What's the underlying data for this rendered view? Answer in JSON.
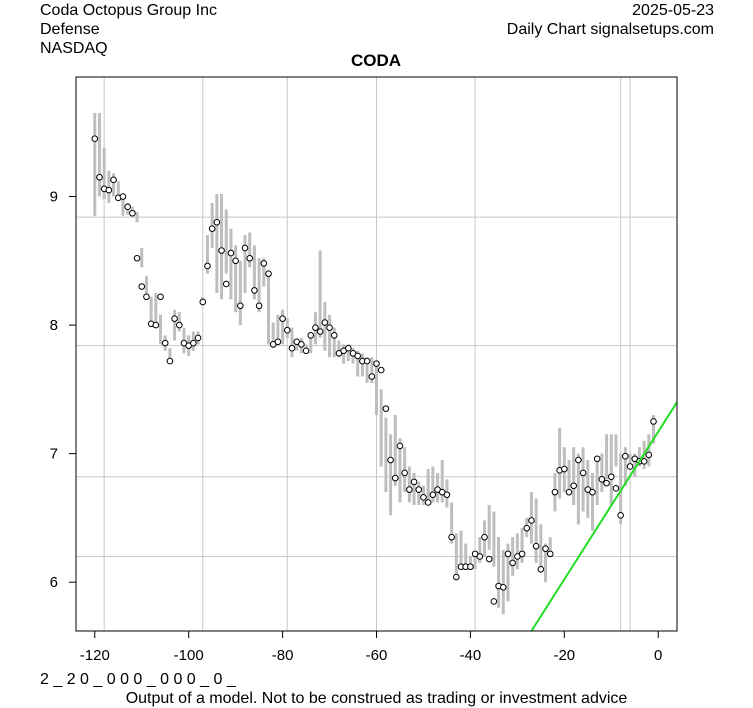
{
  "header": {
    "company": "Coda Octopus Group Inc",
    "sector": "Defense",
    "exchange": "NASDAQ",
    "date": "2025-05-23",
    "source": "Daily Chart signalsetups.com"
  },
  "footer": {
    "code": "2 _ 2 0 _ 0 0 0 _ 0 0 0 _ 0 _",
    "disclaimer": "Output of a model. Not to be construed as trading or investment advice"
  },
  "chart_data": {
    "type": "line",
    "title": "CODA",
    "xlabel": "",
    "ylabel": "",
    "xlim": [
      -124,
      4
    ],
    "ylim": [
      5.62,
      9.93
    ],
    "x_ticks": [
      -120,
      -100,
      -80,
      -60,
      -40,
      -20,
      0
    ],
    "y_ticks": [
      6,
      7,
      8,
      9
    ],
    "vertical_gridlines": [
      -118,
      -97,
      -79,
      -60,
      -39,
      -8,
      -6
    ],
    "horizontal_gridlines": [
      6.2,
      6.82,
      7.84,
      8.84
    ],
    "series": [
      {
        "name": "daily range",
        "style": "range-bars",
        "color": "#bebebe",
        "x": [
          -120,
          -119,
          -118,
          -117,
          -116,
          -115,
          -114,
          -113,
          -112,
          -111,
          -110,
          -109,
          -108,
          -107,
          -106,
          -105,
          -104,
          -103,
          -102,
          -101,
          -100,
          -99,
          -98,
          -97,
          -96,
          -95,
          -94,
          -93,
          -92,
          -91,
          -90,
          -89,
          -88,
          -87,
          -86,
          -85,
          -84,
          -83,
          -82,
          -81,
          -80,
          -79,
          -78,
          -77,
          -76,
          -75,
          -74,
          -73,
          -72,
          -71,
          -70,
          -69,
          -68,
          -67,
          -66,
          -65,
          -64,
          -63,
          -62,
          -61,
          -60,
          -59,
          -58,
          -57,
          -56,
          -55,
          -54,
          -53,
          -52,
          -51,
          -50,
          -49,
          -48,
          -47,
          -46,
          -45,
          -44,
          -43,
          -42,
          -41,
          -40,
          -39,
          -38,
          -37,
          -36,
          -35,
          -34,
          -33,
          -32,
          -31,
          -30,
          -29,
          -28,
          -27,
          -26,
          -25,
          -24,
          -23,
          -22,
          -21,
          -20,
          -19,
          -18,
          -17,
          -16,
          -15,
          -14,
          -13,
          -12,
          -11,
          -10,
          -9,
          -8,
          -7,
          -6,
          -5,
          -4,
          -3,
          -2,
          -1
        ],
        "low": [
          8.85,
          9.0,
          8.98,
          8.95,
          9.0,
          8.97,
          8.85,
          8.86,
          8.85,
          8.8,
          8.45,
          8.2,
          8.0,
          7.98,
          7.85,
          7.8,
          7.72,
          7.88,
          7.95,
          7.78,
          7.76,
          7.8,
          7.85,
          8.15,
          8.4,
          8.6,
          8.25,
          8.2,
          8.4,
          8.2,
          8.1,
          8.0,
          8.25,
          8.45,
          8.2,
          8.1,
          8.3,
          7.85,
          7.82,
          7.85,
          7.85,
          7.9,
          7.75,
          7.8,
          7.78,
          7.78,
          7.78,
          7.85,
          7.9,
          7.8,
          7.75,
          7.75,
          7.75,
          7.7,
          7.72,
          7.7,
          7.6,
          7.6,
          7.55,
          7.55,
          7.3,
          6.9,
          6.7,
          6.52,
          6.75,
          6.62,
          6.7,
          6.62,
          6.6,
          6.6,
          6.6,
          6.6,
          6.62,
          6.62,
          6.62,
          6.58,
          6.3,
          6.03,
          6.1,
          6.1,
          6.1,
          6.1,
          6.15,
          6.2,
          6.25,
          6.12,
          5.8,
          5.75,
          5.85,
          6.05,
          6.1,
          6.15,
          6.35,
          6.3,
          6.15,
          6.1,
          6.0,
          6.2,
          6.55,
          6.65,
          6.7,
          6.7,
          6.6,
          6.45,
          6.55,
          6.5,
          6.4,
          6.6,
          6.7,
          6.8,
          6.6,
          6.9,
          6.45,
          6.75,
          6.88,
          6.82,
          6.9,
          6.88,
          6.9,
          7.08
        ],
        "high": [
          9.65,
          9.65,
          9.38,
          9.2,
          9.18,
          9.12,
          9.02,
          8.95,
          8.92,
          8.88,
          8.6,
          8.38,
          8.22,
          8.25,
          8.08,
          7.92,
          7.82,
          8.12,
          8.1,
          7.98,
          7.92,
          7.95,
          7.95,
          8.22,
          8.7,
          8.95,
          9.02,
          9.02,
          8.9,
          8.75,
          8.62,
          8.5,
          8.7,
          8.72,
          8.62,
          8.52,
          8.52,
          8.42,
          8.02,
          8.08,
          8.12,
          8.05,
          7.98,
          7.88,
          7.9,
          7.85,
          7.92,
          8.1,
          8.58,
          8.18,
          8.08,
          7.98,
          7.88,
          7.85,
          7.85,
          7.82,
          7.8,
          7.78,
          7.75,
          7.75,
          7.7,
          7.5,
          7.28,
          7.15,
          7.3,
          7.12,
          7.05,
          6.9,
          6.85,
          6.78,
          6.75,
          6.88,
          6.9,
          6.85,
          6.95,
          6.8,
          6.62,
          6.38,
          6.4,
          6.3,
          6.2,
          6.2,
          6.35,
          6.48,
          6.6,
          6.55,
          6.35,
          6.25,
          6.3,
          6.35,
          6.38,
          6.42,
          6.5,
          6.7,
          6.65,
          6.45,
          6.3,
          6.35,
          6.85,
          7.2,
          7.05,
          6.95,
          7.05,
          7.0,
          7.05,
          6.95,
          6.85,
          6.95,
          7.0,
          7.15,
          7.15,
          7.15,
          7.0,
          7.05,
          7.0,
          7.0,
          7.05,
          7.1,
          7.15,
          7.3
        ]
      },
      {
        "name": "close",
        "style": "markers",
        "color": "#000000",
        "x": [
          -120,
          -119,
          -118,
          -117,
          -116,
          -115,
          -114,
          -113,
          -112,
          -111,
          -110,
          -109,
          -108,
          -107,
          -106,
          -105,
          -104,
          -103,
          -102,
          -101,
          -100,
          -99,
          -98,
          -97,
          -96,
          -95,
          -94,
          -93,
          -92,
          -91,
          -90,
          -89,
          -88,
          -87,
          -86,
          -85,
          -84,
          -83,
          -82,
          -81,
          -80,
          -79,
          -78,
          -77,
          -76,
          -75,
          -74,
          -73,
          -72,
          -71,
          -70,
          -69,
          -68,
          -67,
          -66,
          -65,
          -64,
          -63,
          -62,
          -61,
          -60,
          -59,
          -58,
          -57,
          -56,
          -55,
          -54,
          -53,
          -52,
          -51,
          -50,
          -49,
          -48,
          -47,
          -46,
          -45,
          -44,
          -43,
          -42,
          -41,
          -40,
          -39,
          -38,
          -37,
          -36,
          -35,
          -34,
          -33,
          -32,
          -31,
          -30,
          -29,
          -28,
          -27,
          -26,
          -25,
          -24,
          -23,
          -22,
          -21,
          -20,
          -19,
          -18,
          -17,
          -16,
          -15,
          -14,
          -13,
          -12,
          -11,
          -10,
          -9,
          -8,
          -7,
          -6,
          -5,
          -4,
          -3,
          -2,
          -1
        ],
        "values": [
          9.45,
          9.15,
          9.06,
          9.05,
          9.13,
          8.99,
          9.0,
          8.92,
          8.87,
          8.52,
          8.3,
          8.22,
          8.01,
          8.0,
          8.22,
          7.86,
          7.72,
          8.05,
          8.0,
          7.86,
          7.84,
          7.86,
          7.9,
          8.18,
          8.46,
          8.75,
          8.8,
          8.58,
          8.32,
          8.56,
          8.5,
          8.15,
          8.6,
          8.52,
          8.27,
          8.15,
          8.48,
          8.4,
          7.85,
          7.87,
          8.05,
          7.96,
          7.82,
          7.87,
          7.85,
          7.8,
          7.92,
          7.98,
          7.95,
          8.02,
          7.98,
          7.92,
          7.78,
          7.8,
          7.82,
          7.78,
          7.76,
          7.72,
          7.72,
          7.6,
          7.7,
          7.65,
          7.35,
          6.95,
          6.81,
          7.06,
          6.85,
          6.72,
          6.78,
          6.72,
          6.66,
          6.62,
          6.68,
          6.72,
          6.7,
          6.68,
          6.35,
          6.04,
          6.12,
          6.12,
          6.12,
          6.22,
          6.2,
          6.35,
          6.18,
          5.85,
          5.97,
          5.96,
          6.22,
          6.15,
          6.2,
          6.22,
          6.42,
          6.48,
          6.28,
          6.1,
          6.26,
          6.22,
          6.7,
          6.87,
          6.88,
          6.7,
          6.75,
          6.95,
          6.85,
          6.72,
          6.7,
          6.96,
          6.8,
          6.77,
          6.82,
          6.73,
          6.52,
          6.98,
          6.9,
          6.96,
          6.94,
          6.94,
          6.99,
          7.25
        ]
      },
      {
        "name": "trend",
        "style": "line",
        "color": "#22dd22",
        "x": [
          -27,
          4
        ],
        "values": [
          5.62,
          7.4
        ]
      }
    ]
  }
}
